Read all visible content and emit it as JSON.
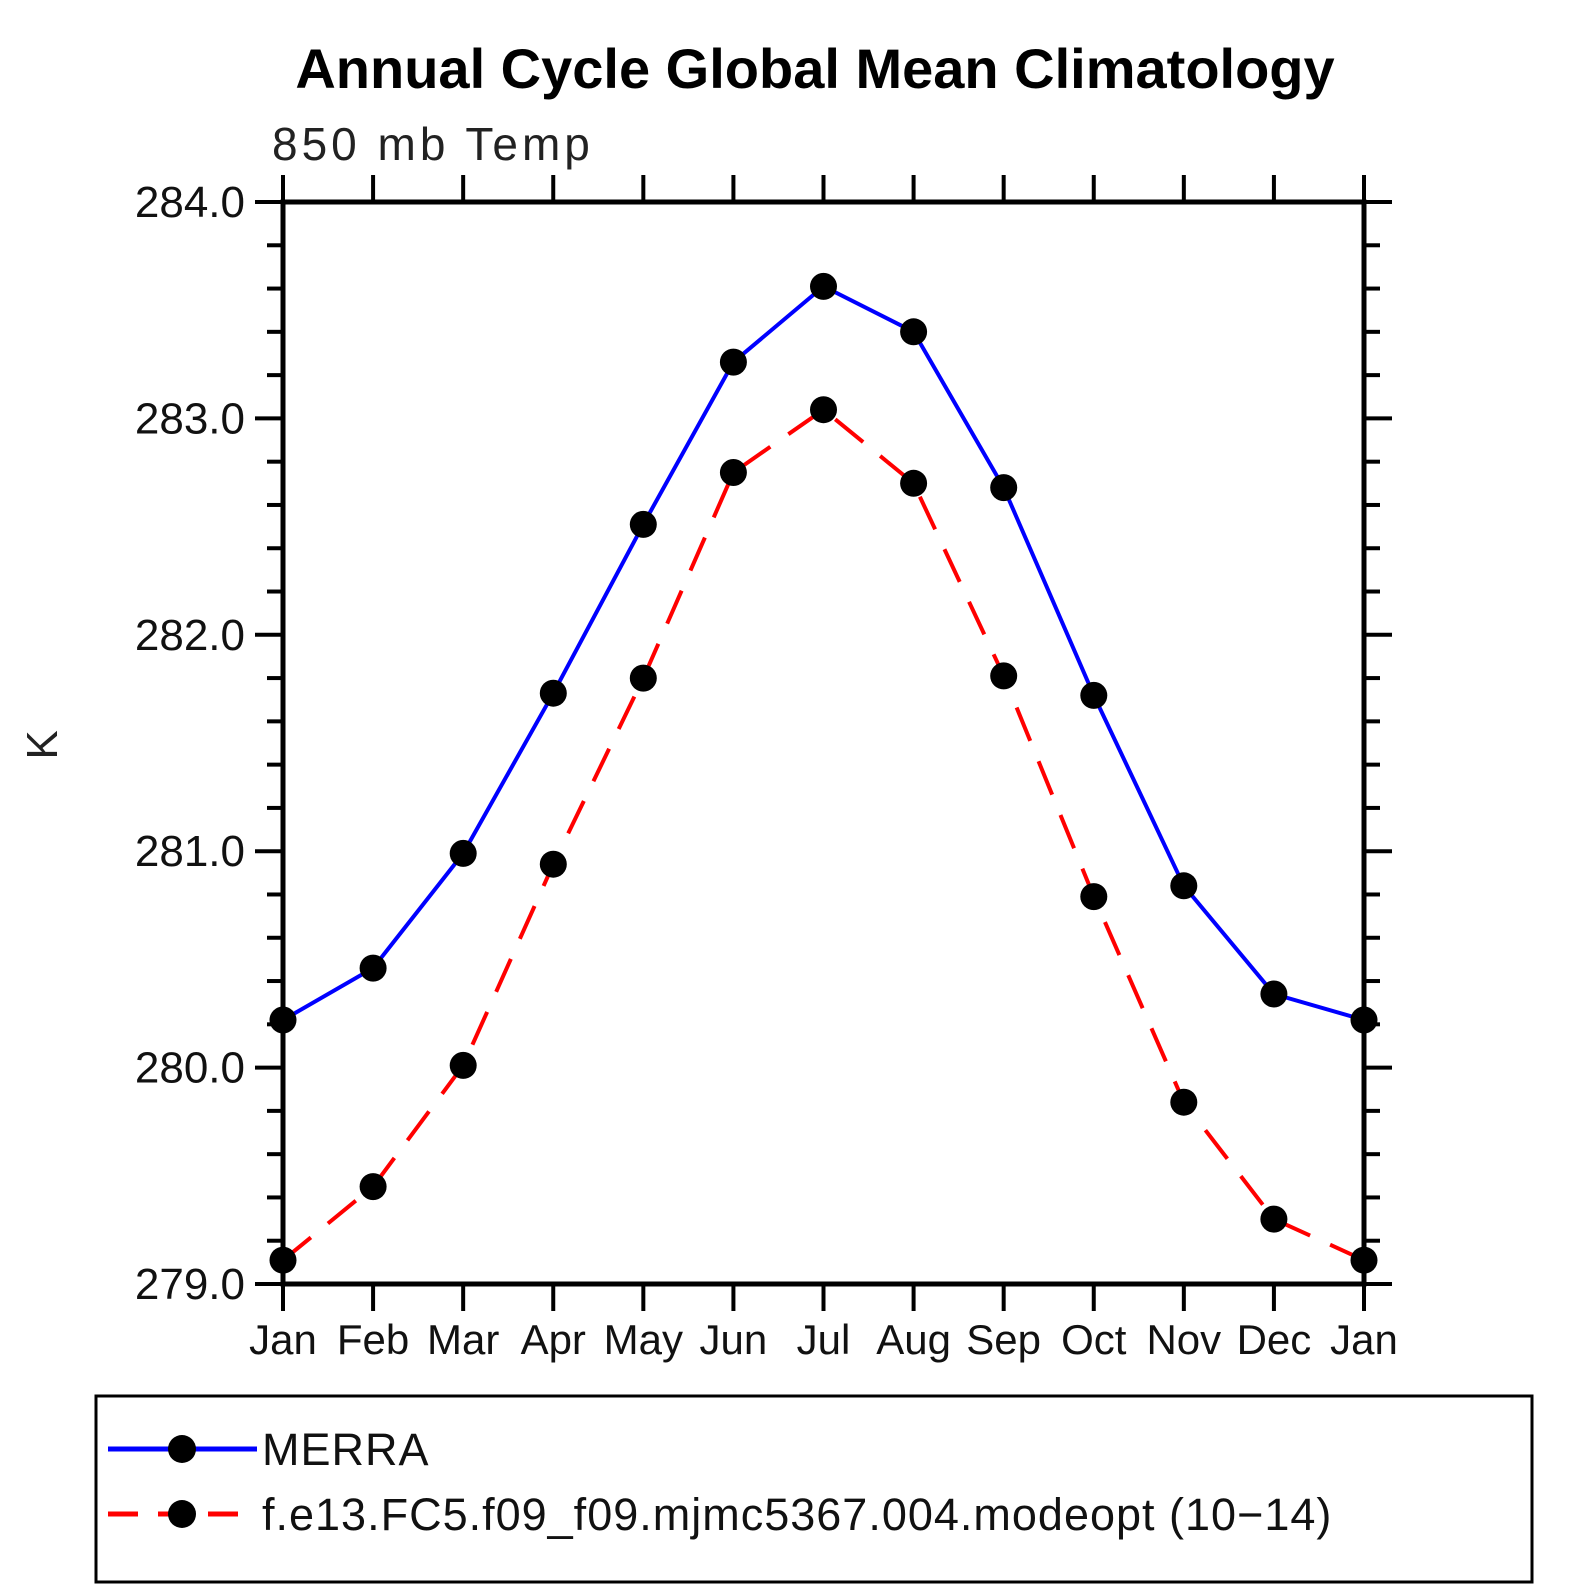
{
  "chart": {
    "title": "Annual Cycle Global Mean Climatology",
    "subtitle": "850 mb Temp",
    "ylabel": "K"
  },
  "chart_data": {
    "type": "line",
    "categories": [
      "Jan",
      "Feb",
      "Mar",
      "Apr",
      "May",
      "Jun",
      "Jul",
      "Aug",
      "Sep",
      "Oct",
      "Nov",
      "Dec",
      "Jan"
    ],
    "series": [
      {
        "name": "MERRA",
        "color": "#0000ff",
        "style": "solid",
        "marker": "filled-circle",
        "marker_color": "#000000",
        "values": [
          280.22,
          280.46,
          280.99,
          281.73,
          282.51,
          283.26,
          283.61,
          283.4,
          282.68,
          281.72,
          280.84,
          280.34,
          280.22
        ]
      },
      {
        "name": "f.e13.FC5.f09_f09.mjmc5367.004.modeopt (10−14)",
        "color": "#ff0000",
        "style": "dashed",
        "marker": "filled-circle",
        "marker_color": "#000000",
        "values": [
          279.11,
          279.45,
          280.01,
          280.94,
          281.8,
          282.75,
          283.04,
          282.7,
          281.81,
          280.79,
          279.84,
          279.3,
          279.11
        ]
      }
    ],
    "title": "Annual Cycle Global Mean Climatology",
    "subtitle": "850 mb Temp",
    "xlabel": "",
    "ylabel": "K",
    "ylim": [
      279.0,
      284.0
    ],
    "yticks": [
      279.0,
      280.0,
      281.0,
      282.0,
      283.0,
      284.0
    ],
    "ytick_labels": [
      "279.0",
      "280.0",
      "281.0",
      "282.0",
      "283.0",
      "284.0"
    ],
    "y_minor_tick_step": 0.2,
    "grid": false,
    "legend_position": "bottom"
  }
}
